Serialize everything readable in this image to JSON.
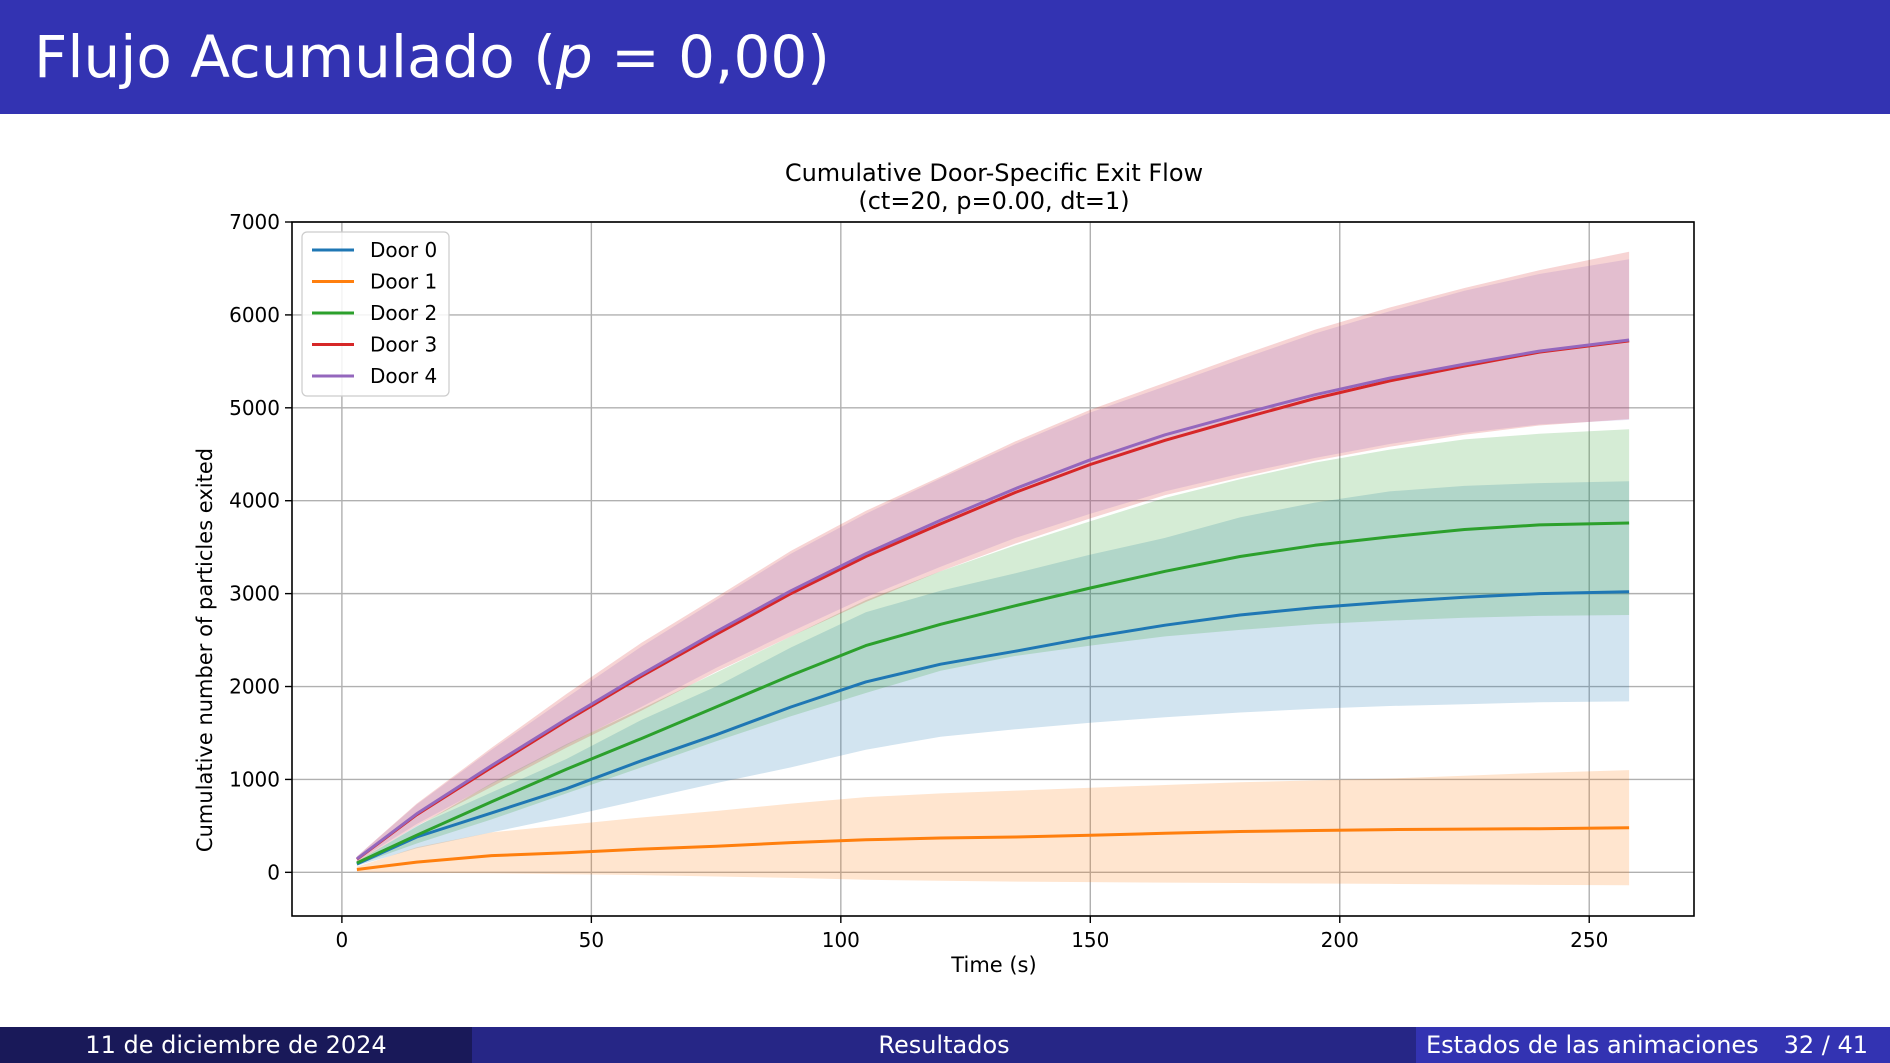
{
  "slide": {
    "title_prefix": "Flujo Acumulado (",
    "title_var": "p",
    "title_suffix": " = 0,00)"
  },
  "footer": {
    "date": "11 de diciembre de 2024",
    "section": "Resultados",
    "subsection": "Estados de las animaciones",
    "page": "32 / 41"
  },
  "chart_data": {
    "type": "line",
    "title": "Cumulative Door-Specific Exit Flow",
    "subtitle": "(ct=20, p=0.00, dt=1)",
    "xlabel": "Time (s)",
    "ylabel": "Cumulative number of particles exited",
    "xlim": [
      -10,
      271
    ],
    "ylim": [
      -470,
      7000
    ],
    "xticks": [
      0,
      50,
      100,
      150,
      200,
      250
    ],
    "yticks": [
      0,
      1000,
      2000,
      3000,
      4000,
      5000,
      6000,
      7000
    ],
    "grid": true,
    "legend_position": "upper-left",
    "shaded_band": "spread",
    "series": [
      {
        "name": "Door 0",
        "color": "#1f77b4",
        "x": [
          3,
          15,
          30,
          45,
          60,
          75,
          90,
          105,
          120,
          135,
          150,
          165,
          180,
          195,
          210,
          225,
          240,
          258
        ],
        "y": [
          90,
          380,
          640,
          900,
          1200,
          1480,
          1780,
          2050,
          2240,
          2380,
          2530,
          2660,
          2770,
          2850,
          2910,
          2960,
          3000,
          3020
        ],
        "lower": [
          70,
          260,
          430,
          600,
          780,
          960,
          1130,
          1320,
          1460,
          1540,
          1610,
          1670,
          1720,
          1760,
          1790,
          1810,
          1830,
          1840
        ],
        "upper": [
          110,
          500,
          860,
          1220,
          1640,
          2000,
          2420,
          2800,
          3030,
          3220,
          3420,
          3600,
          3820,
          3980,
          4100,
          4160,
          4190,
          4210
        ]
      },
      {
        "name": "Door 1",
        "color": "#ff7f0e",
        "x": [
          3,
          15,
          30,
          45,
          60,
          75,
          90,
          105,
          120,
          135,
          150,
          165,
          180,
          195,
          210,
          225,
          240,
          258
        ],
        "y": [
          30,
          110,
          180,
          210,
          250,
          280,
          320,
          350,
          370,
          380,
          400,
          420,
          440,
          450,
          460,
          465,
          470,
          480
        ],
        "lower": [
          0,
          -5,
          -10,
          -20,
          -30,
          -45,
          -60,
          -80,
          -90,
          -100,
          -105,
          -110,
          -115,
          -120,
          -125,
          -130,
          -135,
          -140
        ],
        "upper": [
          60,
          270,
          430,
          510,
          590,
          660,
          740,
          810,
          850,
          880,
          910,
          940,
          970,
          990,
          1010,
          1040,
          1070,
          1100
        ]
      },
      {
        "name": "Door 2",
        "color": "#2ca02c",
        "x": [
          3,
          15,
          30,
          45,
          60,
          75,
          90,
          105,
          120,
          135,
          150,
          165,
          180,
          195,
          210,
          225,
          240,
          258
        ],
        "y": [
          100,
          400,
          760,
          1110,
          1440,
          1780,
          2120,
          2440,
          2670,
          2870,
          3060,
          3240,
          3400,
          3520,
          3610,
          3690,
          3740,
          3760
        ],
        "lower": [
          80,
          310,
          570,
          850,
          1130,
          1410,
          1680,
          1930,
          2170,
          2330,
          2440,
          2540,
          2610,
          2670,
          2710,
          2740,
          2760,
          2770
        ],
        "upper": [
          120,
          490,
          960,
          1380,
          1760,
          2150,
          2540,
          2930,
          3240,
          3520,
          3780,
          4030,
          4230,
          4410,
          4550,
          4660,
          4720,
          4770
        ]
      },
      {
        "name": "Door 3",
        "color": "#d62728",
        "x": [
          3,
          15,
          30,
          45,
          60,
          75,
          90,
          105,
          120,
          135,
          150,
          165,
          180,
          195,
          210,
          225,
          240,
          258
        ],
        "y": [
          140,
          620,
          1130,
          1630,
          2110,
          2560,
          3000,
          3400,
          3750,
          4090,
          4390,
          4650,
          4880,
          5100,
          5290,
          5450,
          5600,
          5720
        ],
        "lower": [
          110,
          500,
          920,
          1340,
          1740,
          2160,
          2540,
          2910,
          3240,
          3540,
          3810,
          4060,
          4250,
          4430,
          4580,
          4710,
          4810,
          4880
        ],
        "upper": [
          170,
          740,
          1340,
          1920,
          2470,
          2960,
          3460,
          3890,
          4260,
          4640,
          4980,
          5270,
          5560,
          5840,
          6080,
          6290,
          6480,
          6680
        ]
      },
      {
        "name": "Door 4",
        "color": "#9467bd",
        "x": [
          3,
          15,
          30,
          45,
          60,
          75,
          90,
          105,
          120,
          135,
          150,
          165,
          180,
          195,
          210,
          225,
          240,
          258
        ],
        "y": [
          145,
          630,
          1150,
          1650,
          2130,
          2590,
          3030,
          3430,
          3790,
          4130,
          4440,
          4710,
          4930,
          5140,
          5320,
          5470,
          5610,
          5730
        ],
        "lower": [
          120,
          520,
          950,
          1370,
          1780,
          2200,
          2590,
          2960,
          3290,
          3600,
          3860,
          4100,
          4290,
          4460,
          4610,
          4730,
          4820,
          4870
        ],
        "upper": [
          170,
          730,
          1320,
          1880,
          2430,
          2930,
          3430,
          3860,
          4240,
          4610,
          4950,
          5230,
          5520,
          5800,
          6040,
          6260,
          6440,
          6600
        ]
      }
    ]
  }
}
